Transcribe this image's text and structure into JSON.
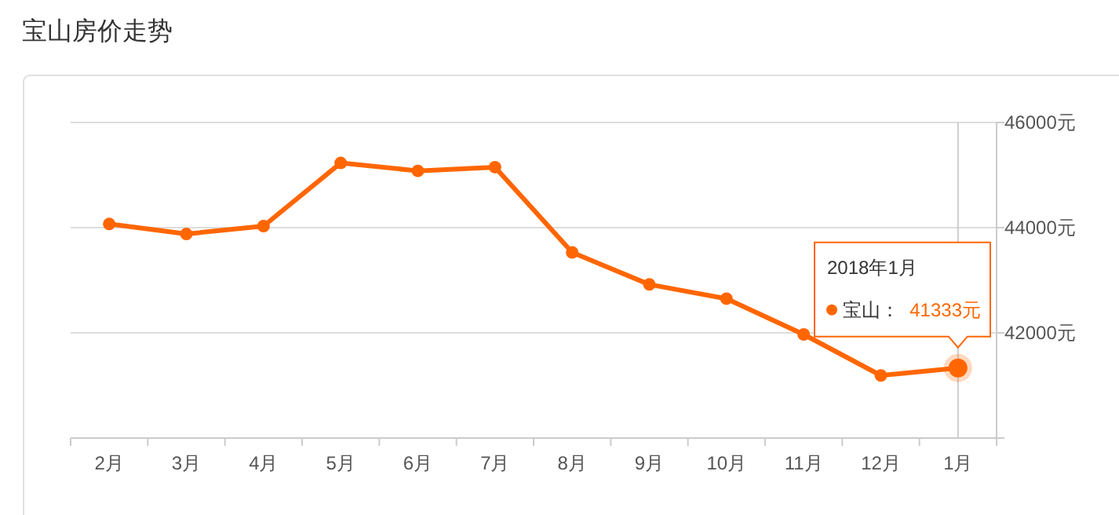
{
  "chart_data": {
    "type": "line",
    "title": "宝山房价走势",
    "categories": [
      "2月",
      "3月",
      "4月",
      "5月",
      "6月",
      "7月",
      "8月",
      "9月",
      "10月",
      "11月",
      "12月",
      "1月"
    ],
    "series": [
      {
        "name": "宝山：",
        "color": "#ff6600",
        "values": [
          44070,
          43880,
          44030,
          45230,
          45080,
          45150,
          43530,
          42920,
          42650,
          41970,
          41190,
          41333
        ],
        "value_labels": [
          null,
          null,
          null,
          null,
          null,
          null,
          null,
          null,
          null,
          null,
          null,
          "41333元"
        ]
      }
    ],
    "annotations": [
      "2018年1月"
    ],
    "legend": "right",
    "ref_lines": [
      {
        "axis": "x",
        "value": "1月",
        "color": "#cccccc"
      }
    ],
    "ylim": [
      40000,
      46000
    ],
    "yticks": [
      {
        "value": 40000,
        "label": null
      },
      {
        "value": 42000,
        "label": "42000元"
      },
      {
        "value": 44000,
        "label": "44000元"
      },
      {
        "value": 46000,
        "label": "46000元"
      }
    ],
    "grid": "y",
    "marker": "circle",
    "line_style": "solid"
  }
}
